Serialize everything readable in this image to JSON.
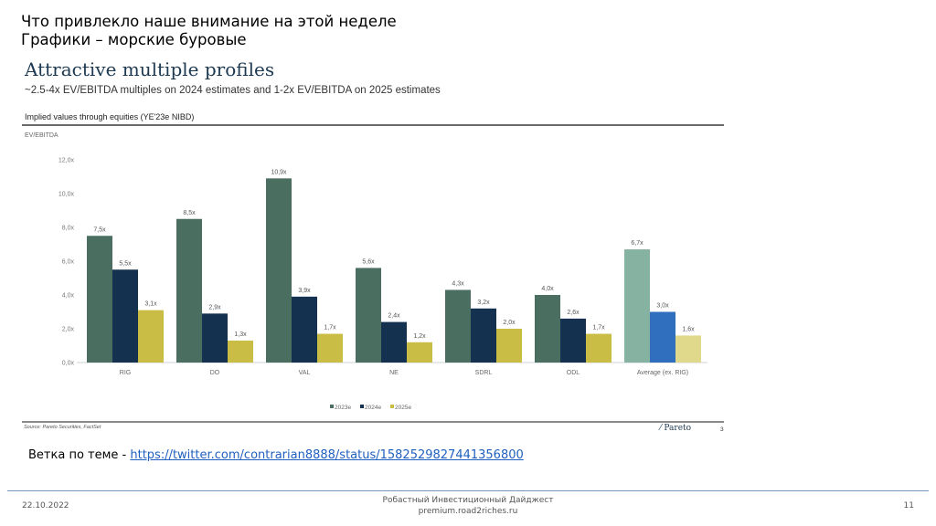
{
  "slide": {
    "title_line1": "Что привлекло наше внимание на этой неделе",
    "title_line2": "Графики – морские буровые"
  },
  "embed": {
    "title": "Attractive multiple profiles",
    "subtitle": "~2.5-4x EV/EBITDA multiples on 2024 estimates and 1-2x EV/EBITDA on 2025 estimates",
    "panel_title": "Implied values through equities (YE'23e NIBD)",
    "source": "Source: Pareto Securities, FactSet",
    "logo_text": "Pareto",
    "page_number": "3"
  },
  "chart_data": {
    "type": "bar",
    "title": "Implied values through equities (YE'23e NIBD)",
    "xlabel": "",
    "ylabel": "EV/EBITDA",
    "ylim": [
      0,
      12
    ],
    "yticks": [
      0,
      2,
      4,
      6,
      8,
      10,
      12
    ],
    "ytick_labels": [
      "0,0x",
      "2,0x",
      "4,0x",
      "6,0x",
      "8,0x",
      "10,0x",
      "12,0x"
    ],
    "grid": false,
    "legend_position": "bottom-center",
    "categories": [
      "RIG",
      "DO",
      "VAL",
      "NE",
      "SDRL",
      "ODL",
      "Average (ex. RIG)"
    ],
    "series": [
      {
        "name": "2023e",
        "color": "#4a6e60",
        "highlight_color": "#86b2a2",
        "values": [
          7.5,
          8.5,
          10.9,
          5.6,
          4.3,
          4.0,
          6.7
        ],
        "labels": [
          "7,5x",
          "8,5x",
          "10,9x",
          "5,6x",
          "4,3x",
          "4,0x",
          "6,7x"
        ]
      },
      {
        "name": "2024e",
        "color": "#14324f",
        "highlight_color": "#2f6fbd",
        "values": [
          5.5,
          2.9,
          3.9,
          2.4,
          3.2,
          2.6,
          3.0
        ],
        "labels": [
          "5,5x",
          "2,9x",
          "3,9x",
          "2,4x",
          "3,2x",
          "2,6x",
          "3,0x"
        ]
      },
      {
        "name": "2025e",
        "color": "#c9bd45",
        "highlight_color": "#e0d88a",
        "values": [
          3.1,
          1.3,
          1.7,
          1.2,
          2.0,
          1.7,
          1.6
        ],
        "labels": [
          "3,1x",
          "1,3x",
          "1,7x",
          "1,2x",
          "2,0x",
          "1,7x",
          "1,6x"
        ]
      }
    ]
  },
  "link_line": {
    "prefix": "Ветка по теме - ",
    "url_text": "https://twitter.com/contrarian8888/status/1582529827441356800"
  },
  "footer": {
    "date": "22.10.2022",
    "center_line1": "Робастный Инвестиционный Дайджест",
    "center_line2": "premium.road2riches.ru",
    "page": "11"
  }
}
